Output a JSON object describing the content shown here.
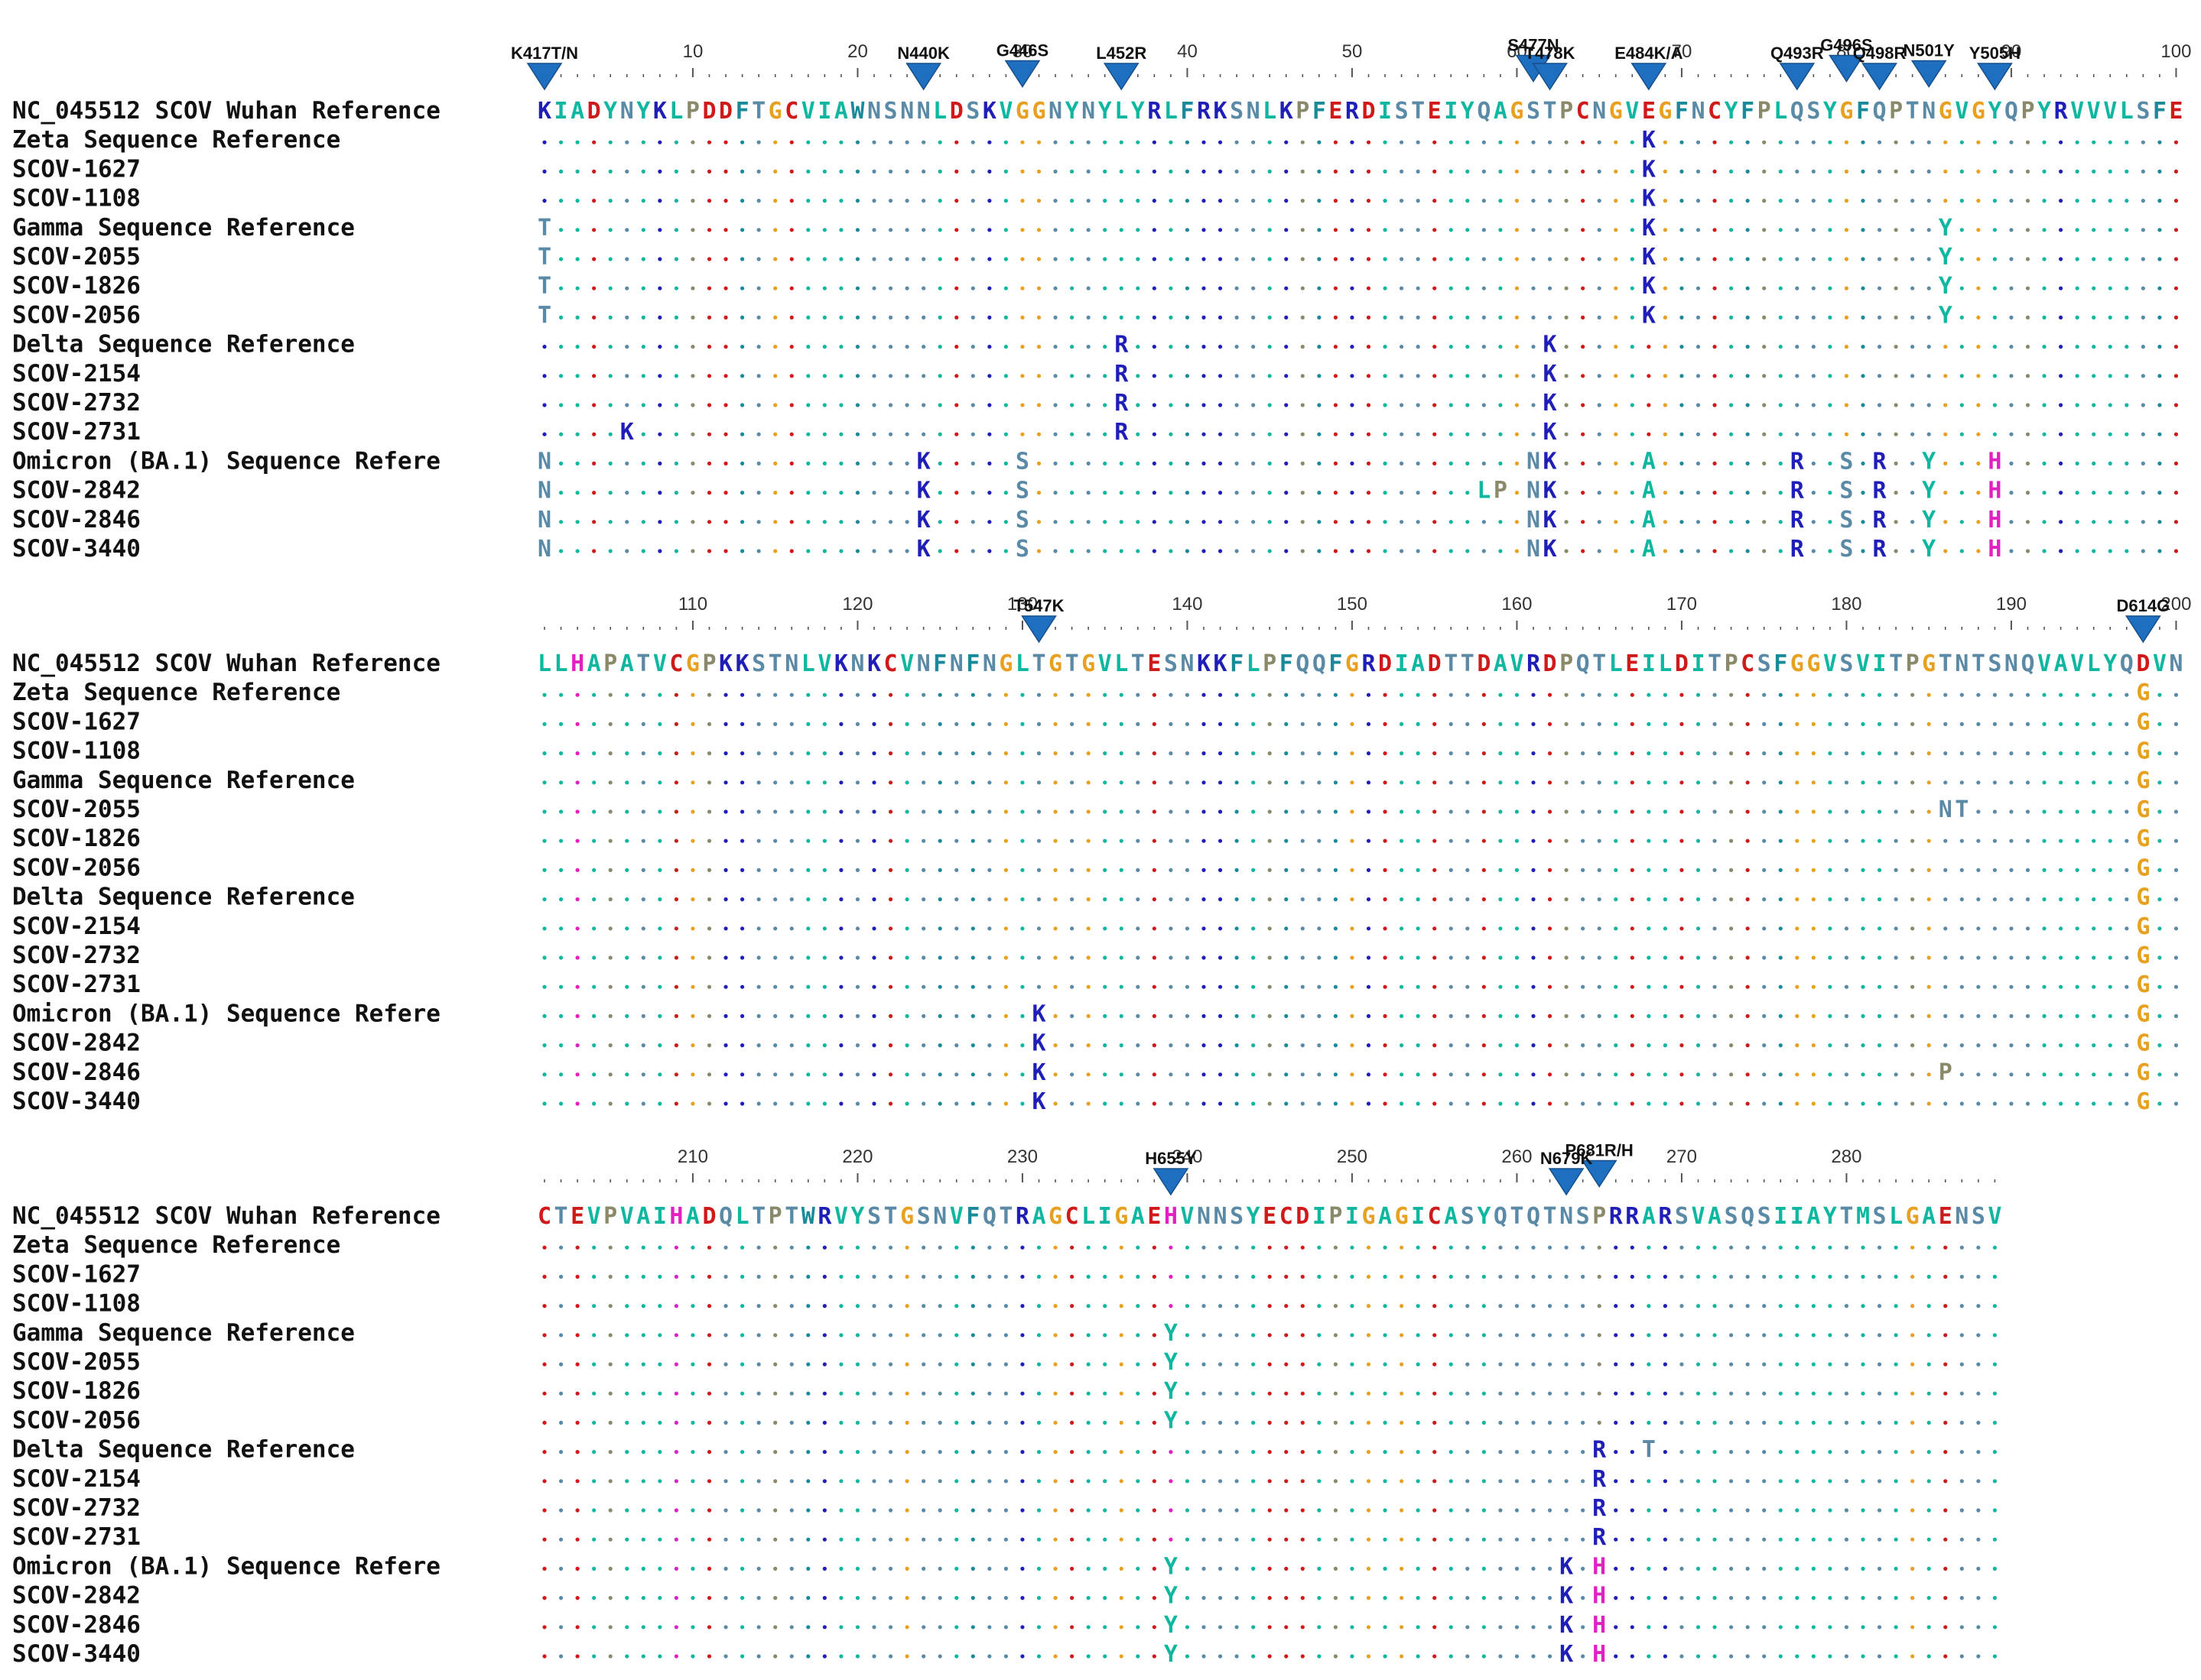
{
  "figure": {
    "row_labels": [
      "NC_045512 SCOV Wuhan Reference",
      "Zeta Sequence Reference",
      "SCOV-1627",
      "SCOV-1108",
      "Gamma Sequence Reference",
      "SCOV-2055",
      "SCOV-1826",
      "SCOV-2056",
      "Delta Sequence Reference",
      "SCOV-2154",
      "SCOV-2732",
      "SCOV-2731",
      "Omicron (BA.1) Sequence Refere",
      "SCOV-2842",
      "SCOV-2846",
      "SCOV-3440"
    ],
    "blocks": [
      {
        "start": 1,
        "ruler_labels": [
          "10",
          "20",
          "30",
          "40",
          "50",
          "60",
          "70",
          "80",
          "90",
          "100"
        ],
        "reference": "KIADYNYKLPDDFTGCVIAWNSNNLDSKVGGNYNYLYRLFRKSNLKPFERDISTEIYQAGSTPCNGVEGFNCYFPLQSYGFQPTNGVGYQPYRVVVLSFE",
        "variants": [
          [],
          [
            [
              68,
              "K"
            ]
          ],
          [
            [
              68,
              "K"
            ]
          ],
          [
            [
              68,
              "K"
            ]
          ],
          [
            [
              1,
              "T"
            ],
            [
              68,
              "K"
            ],
            [
              86,
              "Y"
            ]
          ],
          [
            [
              1,
              "T"
            ],
            [
              68,
              "K"
            ],
            [
              86,
              "Y"
            ]
          ],
          [
            [
              1,
              "T"
            ],
            [
              68,
              "K"
            ],
            [
              86,
              "Y"
            ]
          ],
          [
            [
              1,
              "T"
            ],
            [
              68,
              "K"
            ],
            [
              86,
              "Y"
            ]
          ],
          [
            [
              36,
              "R"
            ],
            [
              62,
              "K"
            ]
          ],
          [
            [
              36,
              "R"
            ],
            [
              62,
              "K"
            ]
          ],
          [
            [
              36,
              "R"
            ],
            [
              62,
              "K"
            ]
          ],
          [
            [
              6,
              "K"
            ],
            [
              36,
              "R"
            ],
            [
              62,
              "K"
            ]
          ],
          [
            [
              1,
              "N"
            ],
            [
              24,
              "K"
            ],
            [
              30,
              "S"
            ],
            [
              61,
              "N"
            ],
            [
              62,
              "K"
            ],
            [
              68,
              "A"
            ],
            [
              77,
              "R"
            ],
            [
              80,
              "S"
            ],
            [
              82,
              "R"
            ],
            [
              85,
              "Y"
            ],
            [
              89,
              "H"
            ]
          ],
          [
            [
              1,
              "N"
            ],
            [
              24,
              "K"
            ],
            [
              30,
              "S"
            ],
            [
              58,
              "L"
            ],
            [
              59,
              "P"
            ],
            [
              61,
              "N"
            ],
            [
              62,
              "K"
            ],
            [
              68,
              "A"
            ],
            [
              77,
              "R"
            ],
            [
              80,
              "S"
            ],
            [
              82,
              "R"
            ],
            [
              85,
              "Y"
            ],
            [
              89,
              "H"
            ]
          ],
          [
            [
              1,
              "N"
            ],
            [
              24,
              "K"
            ],
            [
              30,
              "S"
            ],
            [
              61,
              "N"
            ],
            [
              62,
              "K"
            ],
            [
              68,
              "A"
            ],
            [
              77,
              "R"
            ],
            [
              80,
              "S"
            ],
            [
              82,
              "R"
            ],
            [
              85,
              "Y"
            ],
            [
              89,
              "H"
            ]
          ],
          [
            [
              1,
              "N"
            ],
            [
              24,
              "K"
            ],
            [
              30,
              "S"
            ],
            [
              61,
              "N"
            ],
            [
              62,
              "K"
            ],
            [
              68,
              "A"
            ],
            [
              77,
              "R"
            ],
            [
              80,
              "S"
            ],
            [
              82,
              "R"
            ],
            [
              85,
              "Y"
            ],
            [
              89,
              "H"
            ]
          ]
        ],
        "markers": [
          {
            "label": "K417T/N",
            "col": 1,
            "offset": 0
          },
          {
            "label": "N440K",
            "col": 24,
            "offset": 0
          },
          {
            "label": "G446S",
            "col": 30,
            "offset": -10
          },
          {
            "label": "L452R",
            "col": 36,
            "offset": 0
          },
          {
            "label": "S477N",
            "col": 61,
            "offset": -30
          },
          {
            "label": "T478K",
            "col": 62,
            "offset": 0
          },
          {
            "label": "E484K/A",
            "col": 68,
            "offset": 0
          },
          {
            "label": "Q493R",
            "col": 77,
            "offset": 0
          },
          {
            "label": "G496S",
            "col": 80,
            "offset": -30
          },
          {
            "label": "Q498R",
            "col": 82,
            "offset": 0
          },
          {
            "label": "N501Y",
            "col": 85,
            "offset": -10
          },
          {
            "label": "Y505H",
            "col": 89,
            "offset": 0
          }
        ]
      },
      {
        "start": 101,
        "ruler_labels": [
          "110",
          "120",
          "130",
          "140",
          "150",
          "160",
          "170",
          "180",
          "190",
          "200"
        ],
        "reference": "LLHAPATVCGPKKSTNLVKNKCVNFNFNGLTGTGVLTESNKKFLPFQQFGRDIADTTDAVRDPQTLEILDITPCSFGGVSVITPGTNTSNQVAVLYQDVN",
        "variants": [
          [],
          [
            [
              98,
              "G"
            ]
          ],
          [
            [
              98,
              "G"
            ]
          ],
          [
            [
              98,
              "G"
            ]
          ],
          [
            [
              98,
              "G"
            ]
          ],
          [
            [
              86,
              "N"
            ],
            [
              87,
              "T"
            ],
            [
              98,
              "G"
            ]
          ],
          [
            [
              98,
              "G"
            ]
          ],
          [
            [
              98,
              "G"
            ]
          ],
          [
            [
              98,
              "G"
            ]
          ],
          [
            [
              98,
              "G"
            ]
          ],
          [
            [
              98,
              "G"
            ]
          ],
          [
            [
              98,
              "G"
            ]
          ],
          [
            [
              31,
              "K"
            ],
            [
              98,
              "G"
            ]
          ],
          [
            [
              31,
              "K"
            ],
            [
              98,
              "G"
            ]
          ],
          [
            [
              31,
              "K"
            ],
            [
              86,
              "P"
            ],
            [
              98,
              "G"
            ]
          ],
          [
            [
              31,
              "K"
            ],
            [
              98,
              "G"
            ]
          ]
        ],
        "markers": [
          {
            "label": "T547K",
            "col": 31,
            "offset": 0
          },
          {
            "label": "D614G",
            "col": 98,
            "offset": 0
          }
        ]
      },
      {
        "start": 201,
        "ruler_labels": [
          "210",
          "220",
          "230",
          "240",
          "250",
          "260",
          "270",
          "280"
        ],
        "reference": "CTEVPVAIHADQLTPTWRVYSTGSNVFQTRAGCLIGAEHVNNSYECDIPIGAGICASYQTQTNSPRRARSVASQSIIAYTMSLGAENSV",
        "variants": [
          [],
          [],
          [],
          [],
          [
            [
              39,
              "Y"
            ]
          ],
          [
            [
              39,
              "Y"
            ]
          ],
          [
            [
              39,
              "Y"
            ]
          ],
          [
            [
              39,
              "Y"
            ]
          ],
          [
            [
              65,
              "R"
            ],
            [
              68,
              "T"
            ]
          ],
          [
            [
              65,
              "R"
            ]
          ],
          [
            [
              65,
              "R"
            ]
          ],
          [
            [
              65,
              "R"
            ]
          ],
          [
            [
              39,
              "Y"
            ],
            [
              63,
              "K"
            ],
            [
              65,
              "H"
            ]
          ],
          [
            [
              39,
              "Y"
            ],
            [
              63,
              "K"
            ],
            [
              65,
              "H"
            ]
          ],
          [
            [
              39,
              "Y"
            ],
            [
              63,
              "K"
            ],
            [
              65,
              "H"
            ]
          ],
          [
            [
              39,
              "Y"
            ],
            [
              63,
              "K"
            ],
            [
              65,
              "H"
            ]
          ]
        ],
        "markers": [
          {
            "label": "H655Y",
            "col": 39,
            "offset": 0
          },
          {
            "label": "P681R/H",
            "col": 65,
            "offset": -30
          },
          {
            "label": "N679K",
            "col": 63,
            "offset": 0
          }
        ]
      }
    ],
    "colors": {
      "K": "#1f1fb8",
      "R": "#1f1fb8",
      "H": "#e020c0",
      "D": "#d01a1a",
      "E": "#d01a1a",
      "S": "#5a8aa6",
      "T": "#5a8aa6",
      "N": "#5a8aa6",
      "Q": "#5a8aa6",
      "A": "#10b7a0",
      "V": "#10b7a0",
      "I": "#10b7a0",
      "L": "#10b7a0",
      "M": "#10b7a0",
      "F": "#1a8a9a",
      "W": "#1a8a9a",
      "Y": "#10b7a0",
      "G": "#e8a020",
      "P": "#8a8a6a",
      "C": "#d01a1a",
      "marker": "#1f6fc0"
    }
  }
}
